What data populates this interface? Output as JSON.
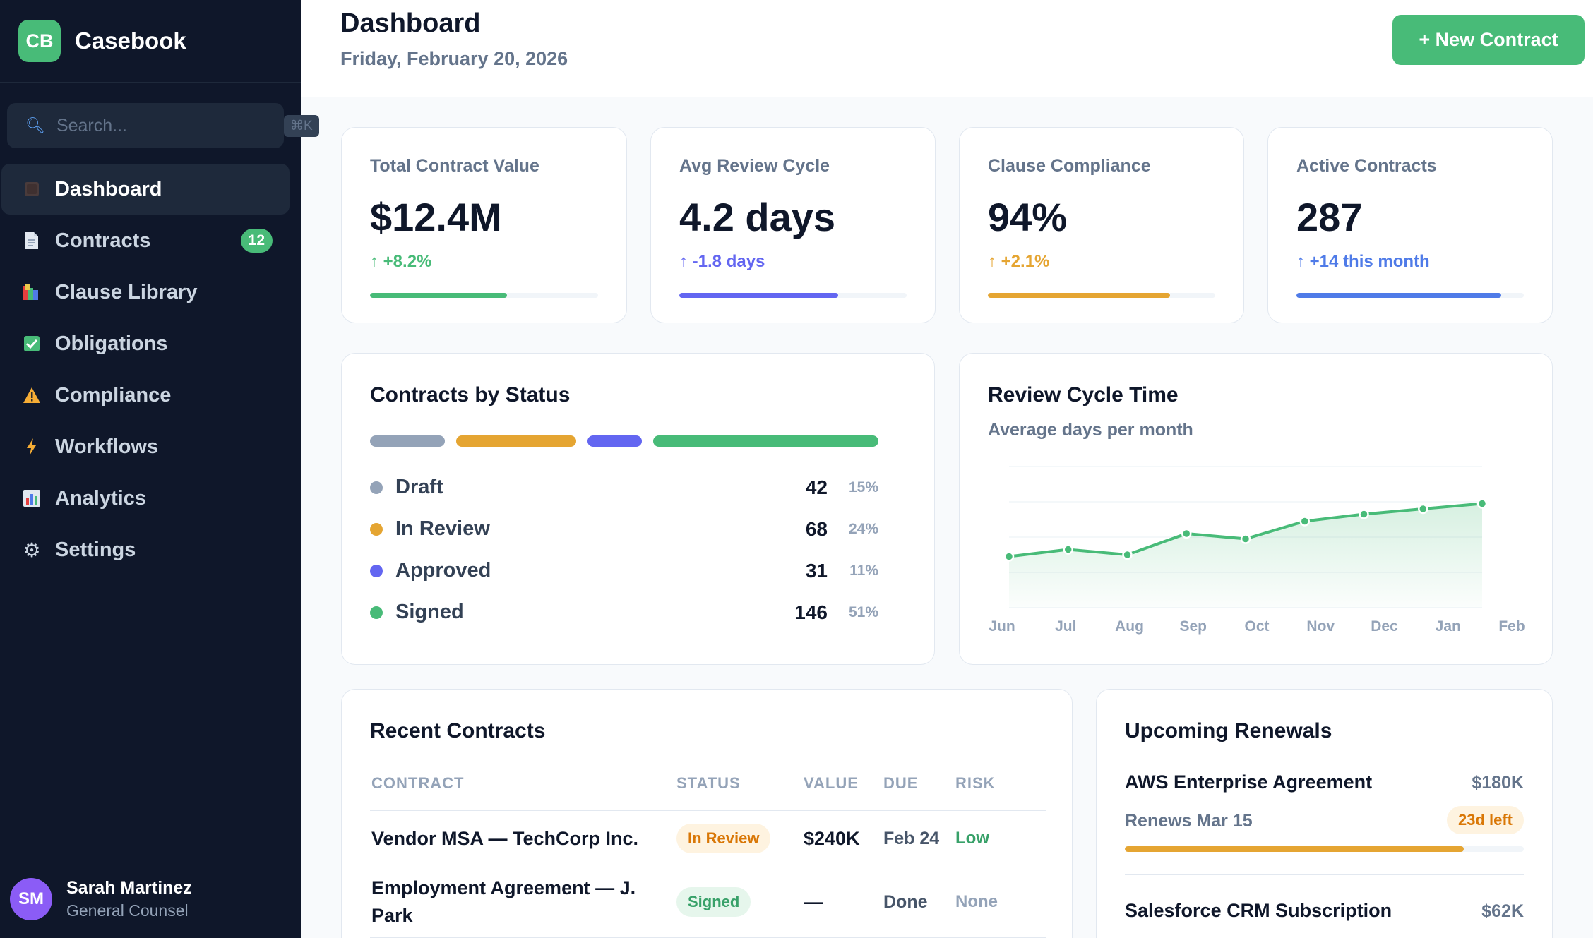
{
  "brand": {
    "logo": "CB",
    "name": "Casebook"
  },
  "search": {
    "placeholder": "Search...",
    "shortcut": "⌘K",
    "icon": "search-icon"
  },
  "nav": [
    {
      "label": "Dashboard",
      "icon": "dashboard-icon",
      "active": true
    },
    {
      "label": "Contracts",
      "icon": "document-icon",
      "badge": "12"
    },
    {
      "label": "Clause Library",
      "icon": "books-icon"
    },
    {
      "label": "Obligations",
      "icon": "check-box-icon"
    },
    {
      "label": "Compliance",
      "icon": "warning-icon"
    },
    {
      "label": "Workflows",
      "icon": "lightning-icon"
    },
    {
      "label": "Analytics",
      "icon": "bar-chart-icon"
    },
    {
      "label": "Settings",
      "icon": "gear-icon"
    }
  ],
  "user": {
    "initials": "SM",
    "name": "Sarah Martinez",
    "role": "General Counsel"
  },
  "header": {
    "title": "Dashboard",
    "date": "Friday, February 20, 2026",
    "new_button": "+ New Contract"
  },
  "kpis": [
    {
      "label": "Total Contract Value",
      "value": "$12.4M",
      "delta": "↑ +8.2%",
      "color": "#48bb78",
      "progress": 0.6
    },
    {
      "label": "Avg Review Cycle",
      "value": "4.2 days",
      "delta": "↑ -1.8 days",
      "color": "#6366f1",
      "progress": 0.7
    },
    {
      "label": "Clause Compliance",
      "value": "94%",
      "delta": "↑ +2.1%",
      "color": "#e5a532",
      "progress": 0.8
    },
    {
      "label": "Active Contracts",
      "value": "287",
      "delta": "↑ +14 this month",
      "color": "#4f7be8",
      "progress": 0.9
    }
  ],
  "status": {
    "title": "Contracts by Status",
    "items": [
      {
        "name": "Draft",
        "count": "42",
        "pct": "15%",
        "color": "#94a3b8"
      },
      {
        "name": "In Review",
        "count": "68",
        "pct": "24%",
        "color": "#e5a532"
      },
      {
        "name": "Approved",
        "count": "31",
        "pct": "11%",
        "color": "#6366f1"
      },
      {
        "name": "Signed",
        "count": "146",
        "pct": "51%",
        "color": "#48bb78"
      }
    ]
  },
  "review_chart": {
    "title": "Review Cycle Time",
    "subtitle": "Average days per month"
  },
  "chart_data": {
    "type": "area",
    "title": "Review Cycle Time",
    "subtitle": "Average days per month",
    "categories": [
      "Jun",
      "Jul",
      "Aug",
      "Sep",
      "Oct",
      "Nov",
      "Dec",
      "Jan",
      "Feb"
    ],
    "series": [
      {
        "values": [
          2.9,
          3.3,
          3.0,
          4.2,
          3.9,
          4.9,
          5.3,
          5.6,
          5.9
        ],
        "color": "#48bb78"
      }
    ],
    "ylim": [
      0,
      8
    ],
    "grid": true
  },
  "recent": {
    "title": "Recent Contracts",
    "columns": [
      "CONTRACT",
      "STATUS",
      "VALUE",
      "DUE",
      "RISK"
    ],
    "rows": [
      {
        "contract": "Vendor MSA — TechCorp Inc.",
        "status": "In Review",
        "value": "$240K",
        "due": "Feb 24",
        "risk": "Low",
        "risk_color": "#38a169"
      },
      {
        "contract": "Employment Agreement — J. Park",
        "status": "Signed",
        "value": "—",
        "due": "Done",
        "risk": "None",
        "risk_color": "#94a3b8"
      }
    ]
  },
  "renewals": {
    "title": "Upcoming Renewals",
    "items": [
      {
        "name": "AWS Enterprise Agreement",
        "value": "$180K",
        "date": "Renews Mar 15",
        "left": "23d left",
        "progress": 0.85
      },
      {
        "name": "Salesforce CRM Subscription",
        "value": "$62K"
      }
    ]
  }
}
